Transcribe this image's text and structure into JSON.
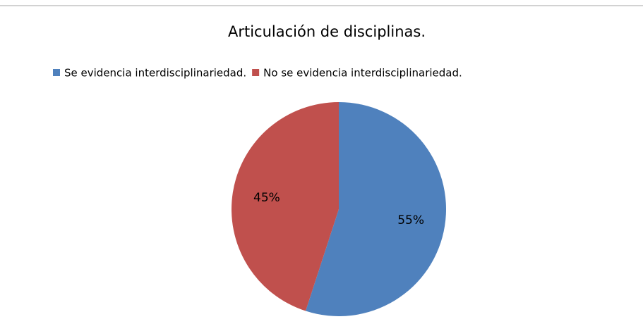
{
  "chart_data": {
    "type": "pie",
    "title": "Articulación de disciplinas.",
    "categories": [
      "Se evidencia interdisciplinariedad.",
      "No se evidencia interdisciplinariedad."
    ],
    "values": [
      55,
      45
    ],
    "value_labels": [
      "55%",
      "45%"
    ],
    "colors": [
      "#4f81bd",
      "#c0504d"
    ],
    "legend": "top"
  }
}
